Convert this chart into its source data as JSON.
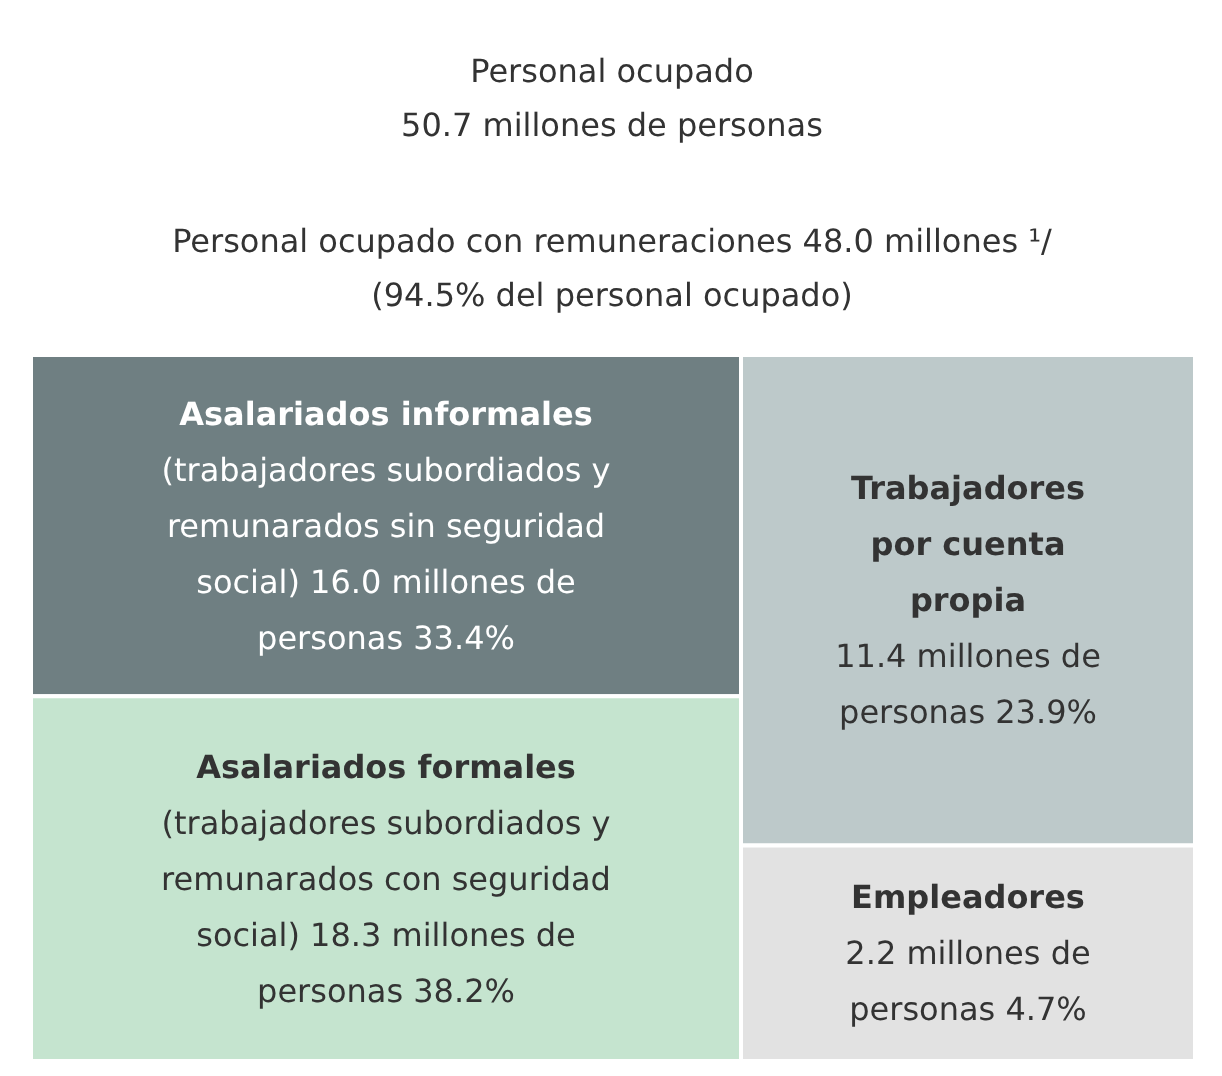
{
  "chart_data": {
    "type": "other",
    "title": "Personal ocupado",
    "subtitle": "50.7 millones de personas",
    "annotations": [
      "Personal ocupado con remuneraciones 48.0 millones ¹/",
      "(94.5% del personal ocupado)"
    ],
    "categories": [
      "Asalariados informales",
      "Asalariados formales",
      "Trabajadores por cuenta propia",
      "Empleadores"
    ],
    "values": [
      16.0,
      18.3,
      11.4,
      2.2
    ],
    "value_labels": [
      "(trabajadores subordiados y remunarados sin seguridad social) 16.0 millones de personas 33.4%",
      "(trabajadores subordiados y remunarados con seguridad social) 18.3 millones de personas 38.2%",
      "11.4 millones de personas 23.9%",
      "2.2 millones de personas 4.7%"
    ],
    "colors": [
      "#6f7f82",
      "#c5e4cf",
      "#bdc9ca",
      "#e2e2e2"
    ]
  }
}
